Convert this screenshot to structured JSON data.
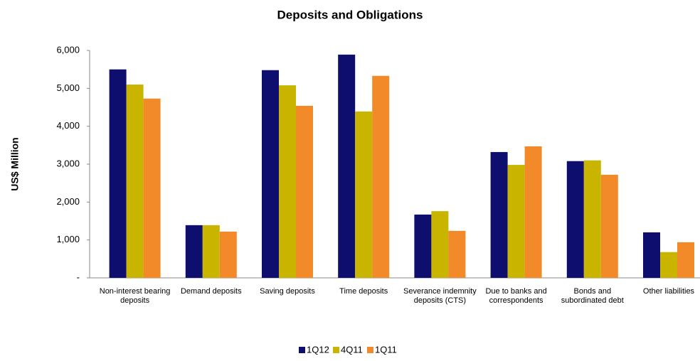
{
  "chart_data": {
    "type": "bar",
    "title": "Deposits and Obligations",
    "y_label": "US$ Million",
    "categories": [
      "Non-interest bearing deposits",
      "Demand deposits",
      "Saving deposits",
      "Time deposits",
      "Severance indemnity deposits (CTS)",
      "Due to banks and correspondents",
      "Bonds and subordinated debt",
      "Other liabilities"
    ],
    "series": [
      {
        "name": "1Q12",
        "color": "#0e0e6e",
        "values": [
          5500,
          1390,
          5480,
          5890,
          1670,
          3320,
          3080,
          1200
        ]
      },
      {
        "name": "4Q11",
        "color": "#c9b500",
        "values": [
          5100,
          1390,
          5080,
          4390,
          1760,
          2980,
          3100,
          680
        ]
      },
      {
        "name": "1Q11",
        "color": "#f28a2a",
        "values": [
          4730,
          1220,
          4540,
          5330,
          1240,
          3470,
          2720,
          940
        ]
      }
    ],
    "ylim": [
      0,
      6000
    ],
    "yticks": [
      {
        "value": 0,
        "label": "-"
      },
      {
        "value": 1000,
        "label": "1,000"
      },
      {
        "value": 2000,
        "label": "2,000"
      },
      {
        "value": 3000,
        "label": "3,000"
      },
      {
        "value": 4000,
        "label": "4,000"
      },
      {
        "value": 5000,
        "label": "5,000"
      },
      {
        "value": 6000,
        "label": "6,000"
      }
    ],
    "legend": "bottom",
    "grid": false
  }
}
